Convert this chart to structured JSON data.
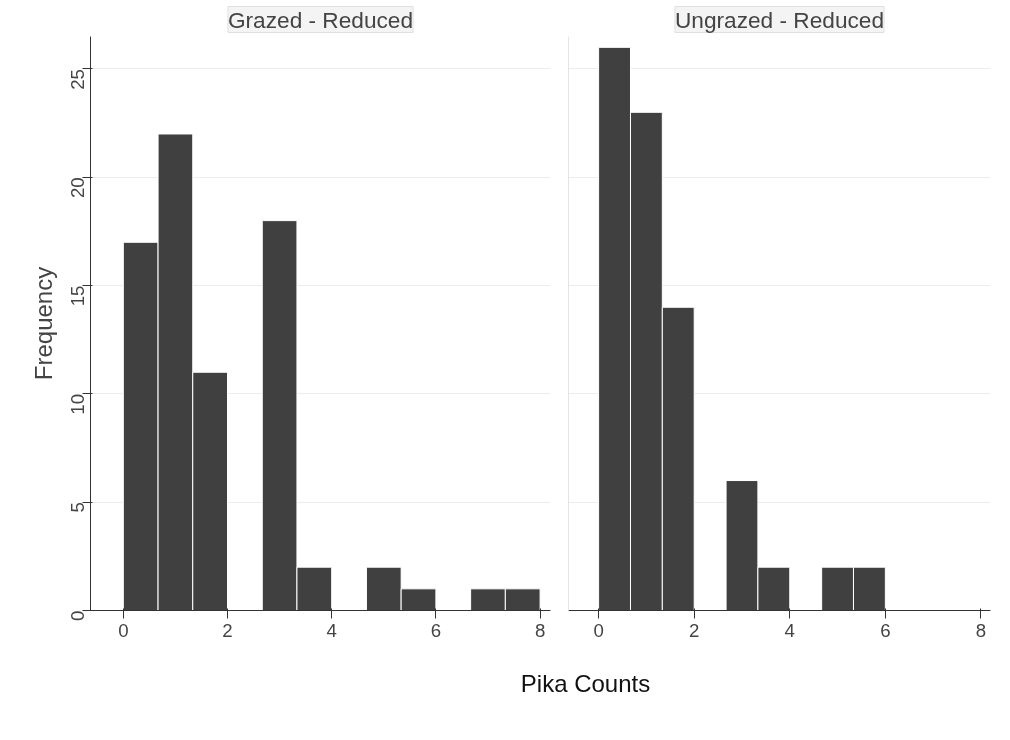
{
  "chart_data": [
    {
      "type": "histogram",
      "title": "Grazed - Reduced",
      "ylabel": "Frequency",
      "xlabel": "Pika Counts",
      "color": "#404040",
      "bins": [
        0,
        0.667,
        1.333,
        2,
        2.667,
        3.333,
        4,
        4.667,
        5.333,
        6,
        6.667,
        7.333,
        8
      ],
      "values": [
        17,
        22,
        11,
        0,
        18,
        2,
        0,
        2,
        1,
        0,
        1,
        1
      ],
      "xlim": [
        -0.63,
        8.2
      ],
      "ylim": [
        0,
        26.5
      ],
      "xticks": [
        0,
        2,
        4,
        6,
        8
      ],
      "yticks": [
        0,
        5,
        10,
        15,
        20,
        25
      ],
      "grid": "y"
    },
    {
      "type": "histogram",
      "title": "Ungrazed - Reduced",
      "color": "#404040",
      "bins": [
        0,
        0.667,
        1.333,
        2,
        2.667,
        3.333,
        4,
        4.667,
        5.333,
        6,
        6.667,
        7.333,
        8
      ],
      "values": [
        26,
        23,
        14,
        0,
        6,
        2,
        0,
        2,
        2,
        0,
        0,
        0
      ],
      "xlim": [
        -0.63,
        8.2
      ],
      "ylim": [
        0,
        26.5
      ],
      "xticks": [
        0,
        2,
        4,
        6,
        8
      ],
      "yticks": [
        0,
        5,
        10,
        15,
        20,
        25
      ],
      "grid": "y",
      "tick_labels": "x"
    }
  ]
}
